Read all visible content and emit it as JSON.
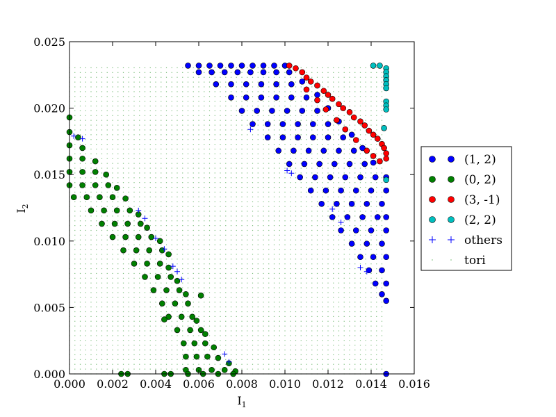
{
  "chart_data": {
    "type": "scatter",
    "xlabel": "I",
    "xlabel_sub": "1",
    "ylabel": "I",
    "ylabel_sub": "2",
    "xlim": [
      0.0,
      0.016
    ],
    "ylim": [
      0.0,
      0.025
    ],
    "x_ticks": [
      0.0,
      0.002,
      0.004,
      0.006,
      0.008,
      0.01,
      0.012,
      0.014,
      0.016
    ],
    "x_tick_labels": [
      "0.000",
      "0.002",
      "0.004",
      "0.006",
      "0.008",
      "0.010",
      "0.012",
      "0.014",
      "0.016"
    ],
    "y_ticks": [
      0.0,
      0.005,
      0.01,
      0.015,
      0.02,
      0.025
    ],
    "y_tick_labels": [
      "0.000",
      "0.005",
      "0.010",
      "0.015",
      "0.020",
      "0.025"
    ],
    "grid": false,
    "legend_position": "right, outside",
    "series": [
      {
        "name": "(1, 2)",
        "color": "#0000ff",
        "marker": "circle",
        "points": [
          [
            0.0055,
            0.0232
          ],
          [
            0.006,
            0.0232
          ],
          [
            0.0065,
            0.0232
          ],
          [
            0.007,
            0.0232
          ],
          [
            0.0075,
            0.0232
          ],
          [
            0.008,
            0.0232
          ],
          [
            0.0085,
            0.0232
          ],
          [
            0.009,
            0.0232
          ],
          [
            0.0095,
            0.0232
          ],
          [
            0.01,
            0.0232
          ],
          [
            0.006,
            0.0227
          ],
          [
            0.0066,
            0.0227
          ],
          [
            0.0072,
            0.0227
          ],
          [
            0.0078,
            0.0227
          ],
          [
            0.0084,
            0.0227
          ],
          [
            0.009,
            0.0227
          ],
          [
            0.0096,
            0.0227
          ],
          [
            0.0102,
            0.0227
          ],
          [
            0.0068,
            0.0218
          ],
          [
            0.0075,
            0.0218
          ],
          [
            0.0082,
            0.0218
          ],
          [
            0.0089,
            0.0218
          ],
          [
            0.0096,
            0.0218
          ],
          [
            0.0103,
            0.0218
          ],
          [
            0.0108,
            0.022
          ],
          [
            0.0075,
            0.0208
          ],
          [
            0.0082,
            0.0208
          ],
          [
            0.0089,
            0.0208
          ],
          [
            0.0096,
            0.0208
          ],
          [
            0.0103,
            0.0208
          ],
          [
            0.011,
            0.0208
          ],
          [
            0.0115,
            0.021
          ],
          [
            0.008,
            0.0198
          ],
          [
            0.0087,
            0.0198
          ],
          [
            0.0094,
            0.0198
          ],
          [
            0.0101,
            0.0198
          ],
          [
            0.0108,
            0.0198
          ],
          [
            0.0115,
            0.0198
          ],
          [
            0.012,
            0.02
          ],
          [
            0.0085,
            0.0188
          ],
          [
            0.0092,
            0.0188
          ],
          [
            0.0099,
            0.0188
          ],
          [
            0.0106,
            0.0188
          ],
          [
            0.0113,
            0.0188
          ],
          [
            0.012,
            0.0188
          ],
          [
            0.0125,
            0.019
          ],
          [
            0.0092,
            0.0178
          ],
          [
            0.0099,
            0.0178
          ],
          [
            0.0106,
            0.0178
          ],
          [
            0.0113,
            0.0178
          ],
          [
            0.012,
            0.0178
          ],
          [
            0.0127,
            0.0178
          ],
          [
            0.0131,
            0.018
          ],
          [
            0.0097,
            0.0168
          ],
          [
            0.0104,
            0.0168
          ],
          [
            0.0111,
            0.0168
          ],
          [
            0.0118,
            0.0168
          ],
          [
            0.0125,
            0.0168
          ],
          [
            0.0132,
            0.0168
          ],
          [
            0.0136,
            0.017
          ],
          [
            0.0102,
            0.0158
          ],
          [
            0.0109,
            0.0158
          ],
          [
            0.0116,
            0.0158
          ],
          [
            0.0123,
            0.0158
          ],
          [
            0.013,
            0.0158
          ],
          [
            0.0137,
            0.0158
          ],
          [
            0.0141,
            0.0159
          ],
          [
            0.0107,
            0.0148
          ],
          [
            0.0114,
            0.0148
          ],
          [
            0.0121,
            0.0148
          ],
          [
            0.0128,
            0.0148
          ],
          [
            0.0135,
            0.0148
          ],
          [
            0.0142,
            0.0148
          ],
          [
            0.0147,
            0.0148
          ],
          [
            0.0112,
            0.0138
          ],
          [
            0.0119,
            0.0138
          ],
          [
            0.0126,
            0.0138
          ],
          [
            0.0133,
            0.0138
          ],
          [
            0.014,
            0.0138
          ],
          [
            0.0147,
            0.0138
          ],
          [
            0.0117,
            0.0128
          ],
          [
            0.0124,
            0.0128
          ],
          [
            0.0131,
            0.0128
          ],
          [
            0.0138,
            0.0128
          ],
          [
            0.0145,
            0.0128
          ],
          [
            0.0122,
            0.0118
          ],
          [
            0.0129,
            0.0118
          ],
          [
            0.0136,
            0.0118
          ],
          [
            0.0143,
            0.0118
          ],
          [
            0.0147,
            0.0118
          ],
          [
            0.0126,
            0.0108
          ],
          [
            0.0133,
            0.0108
          ],
          [
            0.014,
            0.0108
          ],
          [
            0.0147,
            0.0108
          ],
          [
            0.0131,
            0.0098
          ],
          [
            0.0138,
            0.0098
          ],
          [
            0.0145,
            0.0098
          ],
          [
            0.0135,
            0.0088
          ],
          [
            0.0141,
            0.0088
          ],
          [
            0.0147,
            0.0088
          ],
          [
            0.0139,
            0.0078
          ],
          [
            0.0145,
            0.0078
          ],
          [
            0.0142,
            0.0068
          ],
          [
            0.0147,
            0.0068
          ],
          [
            0.0145,
            0.006
          ],
          [
            0.0147,
            0.0055
          ],
          [
            0.0147,
            0.0
          ]
        ]
      },
      {
        "name": "(0, 2)",
        "color": "#008000",
        "marker": "circle",
        "points": [
          [
            0.0,
            0.0193
          ],
          [
            0.0,
            0.0182
          ],
          [
            0.0004,
            0.0178
          ],
          [
            0.0,
            0.0172
          ],
          [
            0.0006,
            0.017
          ],
          [
            0.0,
            0.0162
          ],
          [
            0.0006,
            0.0162
          ],
          [
            0.0012,
            0.016
          ],
          [
            0.0,
            0.0152
          ],
          [
            0.0006,
            0.0152
          ],
          [
            0.0012,
            0.0152
          ],
          [
            0.0017,
            0.015
          ],
          [
            0.0,
            0.0142
          ],
          [
            0.0006,
            0.0142
          ],
          [
            0.0012,
            0.0142
          ],
          [
            0.0018,
            0.0142
          ],
          [
            0.0022,
            0.014
          ],
          [
            0.0002,
            0.0133
          ],
          [
            0.0008,
            0.0133
          ],
          [
            0.0014,
            0.0133
          ],
          [
            0.002,
            0.0133
          ],
          [
            0.0026,
            0.0132
          ],
          [
            0.001,
            0.0123
          ],
          [
            0.0016,
            0.0123
          ],
          [
            0.0022,
            0.0123
          ],
          [
            0.0028,
            0.0123
          ],
          [
            0.0032,
            0.012
          ],
          [
            0.0015,
            0.0113
          ],
          [
            0.0021,
            0.0113
          ],
          [
            0.0027,
            0.0113
          ],
          [
            0.0033,
            0.0113
          ],
          [
            0.0036,
            0.011
          ],
          [
            0.002,
            0.0103
          ],
          [
            0.0026,
            0.0103
          ],
          [
            0.0032,
            0.0103
          ],
          [
            0.0038,
            0.0103
          ],
          [
            0.0042,
            0.01
          ],
          [
            0.0025,
            0.0093
          ],
          [
            0.0031,
            0.0093
          ],
          [
            0.0037,
            0.0093
          ],
          [
            0.0043,
            0.0093
          ],
          [
            0.0046,
            0.009
          ],
          [
            0.003,
            0.0083
          ],
          [
            0.0036,
            0.0083
          ],
          [
            0.0042,
            0.0083
          ],
          [
            0.0046,
            0.008
          ],
          [
            0.0035,
            0.0073
          ],
          [
            0.0041,
            0.0073
          ],
          [
            0.0047,
            0.0073
          ],
          [
            0.005,
            0.007
          ],
          [
            0.0039,
            0.0063
          ],
          [
            0.0045,
            0.0063
          ],
          [
            0.0051,
            0.0063
          ],
          [
            0.0054,
            0.006
          ],
          [
            0.0061,
            0.0059
          ],
          [
            0.0043,
            0.0053
          ],
          [
            0.0049,
            0.0053
          ],
          [
            0.0055,
            0.0053
          ],
          [
            0.0046,
            0.0043
          ],
          [
            0.0052,
            0.0043
          ],
          [
            0.0057,
            0.0043
          ],
          [
            0.0059,
            0.004
          ],
          [
            0.0044,
            0.0041
          ],
          [
            0.005,
            0.0033
          ],
          [
            0.0056,
            0.0033
          ],
          [
            0.0061,
            0.0033
          ],
          [
            0.0063,
            0.003
          ],
          [
            0.0053,
            0.0023
          ],
          [
            0.0058,
            0.0023
          ],
          [
            0.0063,
            0.0023
          ],
          [
            0.0067,
            0.002
          ],
          [
            0.0054,
            0.0013
          ],
          [
            0.0059,
            0.0013
          ],
          [
            0.0064,
            0.0013
          ],
          [
            0.0069,
            0.0012
          ],
          [
            0.0074,
            0.0008
          ],
          [
            0.0054,
            0.0003
          ],
          [
            0.006,
            0.0003
          ],
          [
            0.0066,
            0.0003
          ],
          [
            0.0072,
            0.0003
          ],
          [
            0.0077,
            0.0002
          ],
          [
            0.0024,
            0.0
          ],
          [
            0.0027,
            0.0
          ],
          [
            0.0044,
            0.0
          ],
          [
            0.0047,
            0.0
          ],
          [
            0.0055,
            0.0
          ],
          [
            0.0062,
            0.0
          ],
          [
            0.0069,
            0.0
          ],
          [
            0.0076,
            0.0
          ]
        ]
      },
      {
        "name": "(3, -1)",
        "color": "#ff0000",
        "marker": "circle",
        "points": [
          [
            0.0102,
            0.0232
          ],
          [
            0.0105,
            0.023
          ],
          [
            0.0108,
            0.0227
          ],
          [
            0.011,
            0.0223
          ],
          [
            0.0112,
            0.022
          ],
          [
            0.0115,
            0.0217
          ],
          [
            0.0118,
            0.0213
          ],
          [
            0.012,
            0.021
          ],
          [
            0.0122,
            0.0207
          ],
          [
            0.0125,
            0.0203
          ],
          [
            0.0127,
            0.02
          ],
          [
            0.013,
            0.0197
          ],
          [
            0.0132,
            0.0193
          ],
          [
            0.0135,
            0.019
          ],
          [
            0.0137,
            0.0187
          ],
          [
            0.0139,
            0.0183
          ],
          [
            0.0141,
            0.018
          ],
          [
            0.0143,
            0.0177
          ],
          [
            0.0145,
            0.0173
          ],
          [
            0.0146,
            0.017
          ],
          [
            0.0147,
            0.0166
          ],
          [
            0.0147,
            0.0162
          ],
          [
            0.0144,
            0.016
          ],
          [
            0.0141,
            0.0164
          ],
          [
            0.0138,
            0.0168
          ],
          [
            0.0133,
            0.0176
          ],
          [
            0.0128,
            0.0184
          ],
          [
            0.0124,
            0.0191
          ],
          [
            0.0119,
            0.0199
          ],
          [
            0.0115,
            0.0206
          ],
          [
            0.011,
            0.0214
          ]
        ]
      },
      {
        "name": "(2, 2)",
        "color": "#00bfbf",
        "marker": "circle",
        "points": [
          [
            0.0141,
            0.0232
          ],
          [
            0.0144,
            0.0232
          ],
          [
            0.0147,
            0.023
          ],
          [
            0.0147,
            0.0227
          ],
          [
            0.0147,
            0.0224
          ],
          [
            0.0147,
            0.0221
          ],
          [
            0.0147,
            0.0218
          ],
          [
            0.0147,
            0.0215
          ],
          [
            0.0147,
            0.0205
          ],
          [
            0.0147,
            0.0202
          ],
          [
            0.0147,
            0.0199
          ],
          [
            0.0146,
            0.0185
          ],
          [
            0.0147,
            0.0146
          ]
        ]
      },
      {
        "name": "others",
        "color": "#0000ff",
        "marker": "plus",
        "points": [
          [
            0.0002,
            0.0179
          ],
          [
            0.0006,
            0.0177
          ],
          [
            0.0032,
            0.0123
          ],
          [
            0.0035,
            0.0117
          ],
          [
            0.004,
            0.0102
          ],
          [
            0.0044,
            0.0094
          ],
          [
            0.0048,
            0.0081
          ],
          [
            0.005,
            0.0077
          ],
          [
            0.0052,
            0.0071
          ],
          [
            0.0072,
            0.0015
          ],
          [
            0.0074,
            0.0009
          ],
          [
            0.0084,
            0.0184
          ],
          [
            0.0101,
            0.0153
          ],
          [
            0.0103,
            0.0151
          ],
          [
            0.0135,
            0.008
          ],
          [
            0.0138,
            0.0077
          ],
          [
            0.0122,
            0.0124
          ],
          [
            0.0126,
            0.0114
          ]
        ]
      },
      {
        "name": "tori",
        "color": "#7fbf7f",
        "marker": "dot",
        "x_range": [
          0.0,
          0.0147
        ],
        "x_step": 0.00025,
        "y_range": [
          0.0,
          0.0232
        ],
        "y_step": 0.00036
      }
    ]
  }
}
